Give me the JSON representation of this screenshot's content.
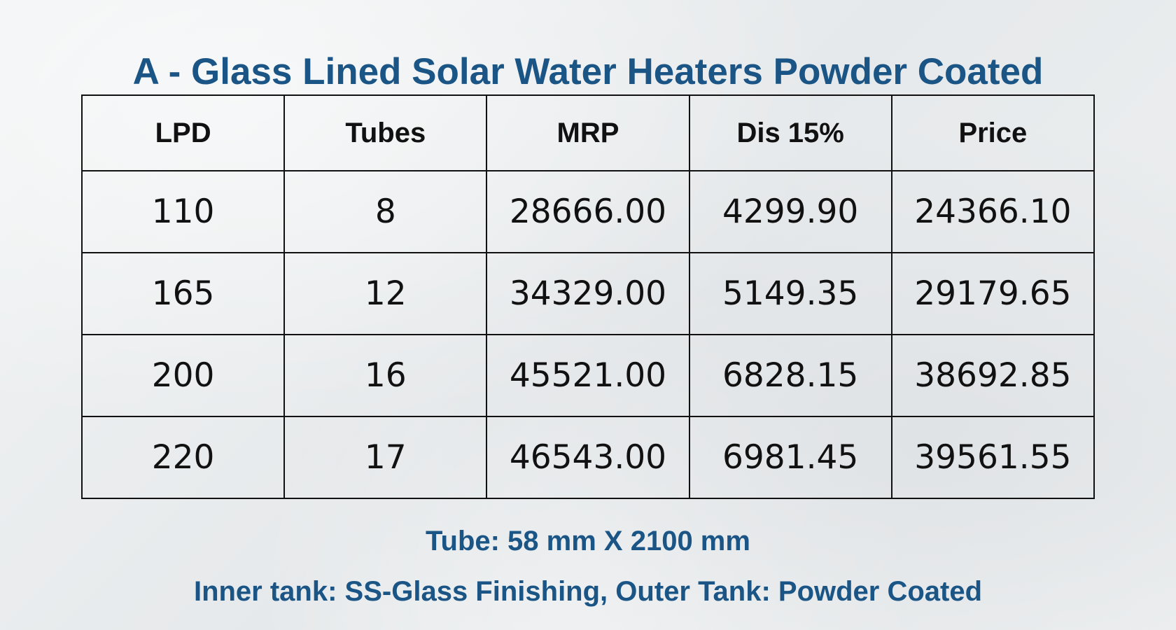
{
  "title": "A - Glass Lined Solar Water Heaters Powder Coated",
  "table": {
    "headers": [
      "LPD",
      "Tubes",
      "MRP",
      "Dis 15%",
      "Price"
    ],
    "rows": [
      [
        "110",
        "8",
        "28666.00",
        "4299.90",
        "24366.10"
      ],
      [
        "165",
        "12",
        "34329.00",
        "5149.35",
        "29179.65"
      ],
      [
        "200",
        "16",
        "45521.00",
        "6828.15",
        "38692.85"
      ],
      [
        "220",
        "17",
        "46543.00",
        "6981.45",
        "39561.55"
      ]
    ]
  },
  "notes": {
    "tube": "Tube: 58 mm X 2100 mm",
    "tank": "Inner tank: SS-Glass Finishing, Outer Tank: Powder Coated"
  },
  "colors": {
    "heading": "#1a5585",
    "text": "#111111",
    "border": "#111111",
    "background": "#eef0f1"
  }
}
